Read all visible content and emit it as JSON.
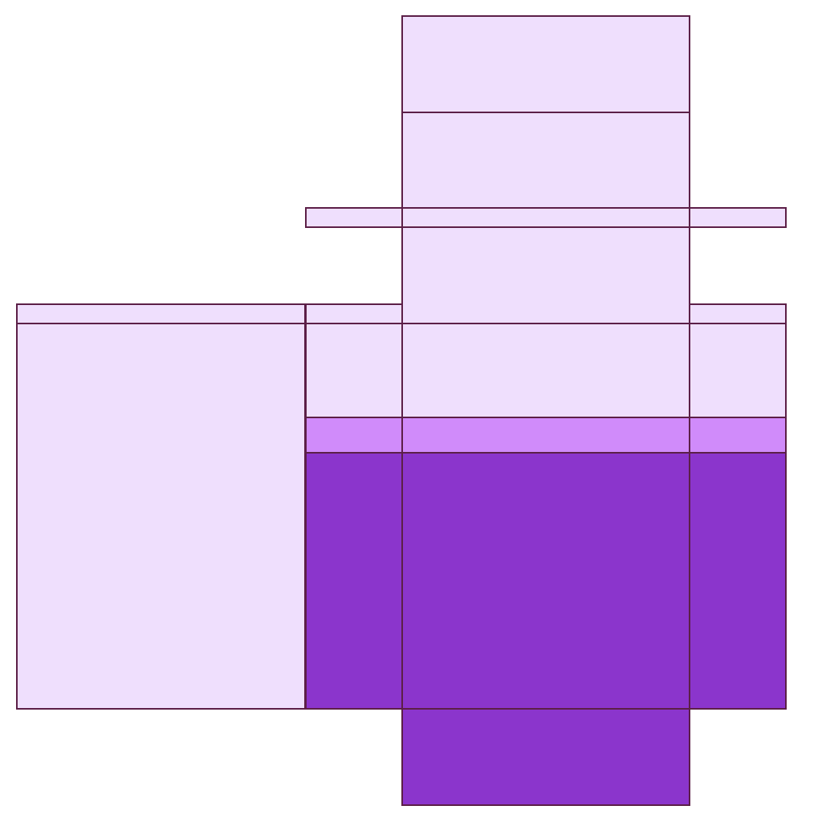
{
  "diagram": {
    "kind": "box net (fold-out pattern)",
    "colors": {
      "background": "#ffffff",
      "outline": "#5c1f47",
      "empty_fill": "#efdffd",
      "light_fill": "#d08bfa",
      "dark_fill": "#8b35cc"
    },
    "panels": [
      {
        "name": "top-lid-panel",
        "fill": "empty"
      },
      {
        "name": "back-panel-upper",
        "fill": "empty"
      },
      {
        "name": "top-flap-strip",
        "fill": "empty"
      },
      {
        "name": "back-panel-lower",
        "fill": "empty"
      },
      {
        "name": "left-side-panel",
        "fill": "empty"
      },
      {
        "name": "left-glue-strip",
        "fill": "empty"
      },
      {
        "name": "front-left-panel",
        "fill": "mixed",
        "levels": [
          "empty",
          "light",
          "dark"
        ]
      },
      {
        "name": "front-center-panel",
        "fill": "mixed",
        "levels": [
          "empty",
          "light",
          "dark"
        ]
      },
      {
        "name": "front-right-panel",
        "fill": "mixed",
        "levels": [
          "empty",
          "light",
          "dark"
        ]
      },
      {
        "name": "bottom-panel",
        "fill": "dark"
      }
    ]
  }
}
